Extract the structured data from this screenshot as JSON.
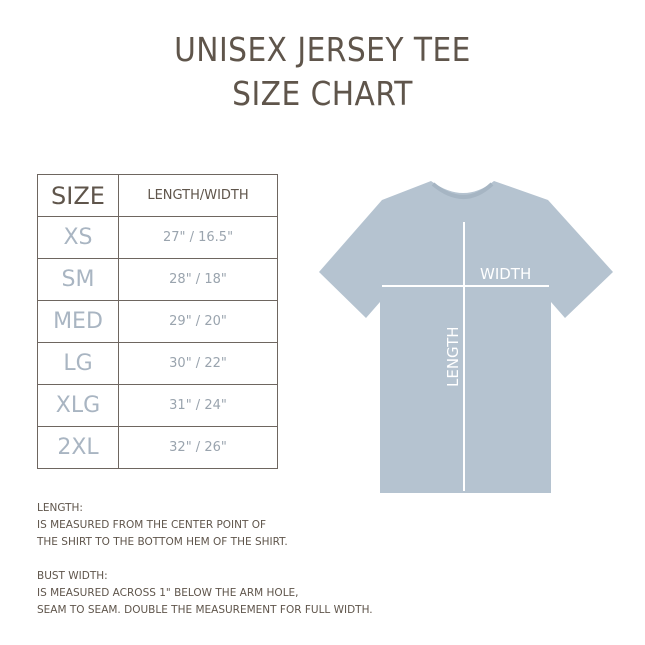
{
  "title": {
    "line1": "UNISEX JERSEY TEE",
    "line2": "SIZE CHART"
  },
  "table": {
    "headers": [
      "SIZE",
      "LENGTH/WIDTH"
    ],
    "rows": [
      {
        "size": "XS",
        "measure": "27\" / 16.5\""
      },
      {
        "size": "SM",
        "measure": "28\" / 18\""
      },
      {
        "size": "MED",
        "measure": "29\" / 20\""
      },
      {
        "size": "LG",
        "measure": "30\" / 22\""
      },
      {
        "size": "XLG",
        "measure": "31\" / 24\""
      },
      {
        "size": "2XL",
        "measure": "32\" / 26\""
      }
    ]
  },
  "shirt": {
    "width_label": "WIDTH",
    "length_label": "LENGTH",
    "color": "#b5c3d0"
  },
  "notes": {
    "length_heading": "LENGTH:",
    "length_lines": [
      "IS MEASURED FROM THE CENTER POINT OF",
      "THE SHIRT TO THE BOTTOM HEM OF THE SHIRT."
    ],
    "width_heading": "BUST WIDTH:",
    "width_lines": [
      "IS MEASURED ACROSS 1\" BELOW THE ARM HOLE,",
      "SEAM TO SEAM. DOUBLE THE MEASUREMENT FOR FULL WIDTH."
    ]
  }
}
